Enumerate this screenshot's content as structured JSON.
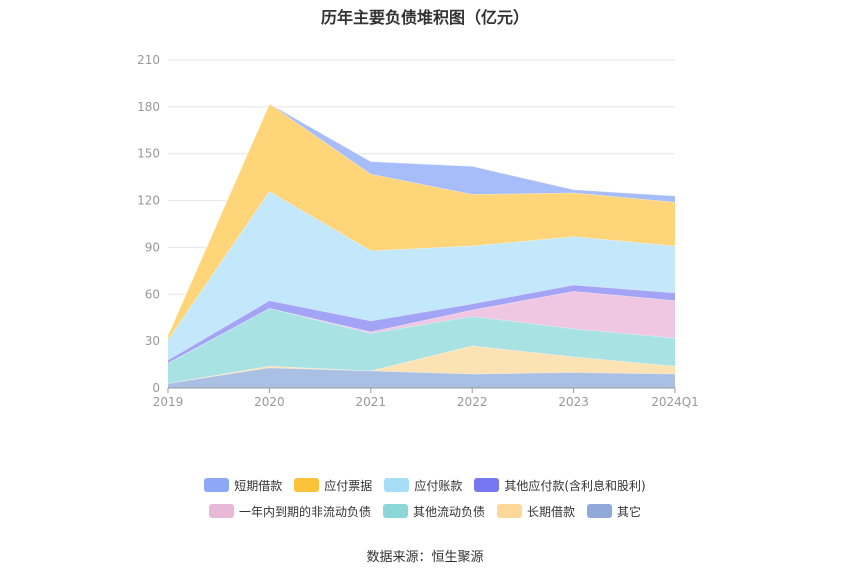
{
  "source": "数据来源：恒生聚源",
  "chart_data": {
    "type": "area",
    "title": "历年主要负债堆积图（亿元）",
    "xlabel": "",
    "ylabel": "",
    "categories": [
      "2019",
      "2020",
      "2021",
      "2022",
      "2023",
      "2024Q1"
    ],
    "ylim": [
      0,
      210
    ],
    "yticks": [
      0,
      30,
      60,
      90,
      120,
      150,
      180,
      210
    ],
    "grid": true,
    "legend_position": "bottom",
    "stacked": true,
    "series": [
      {
        "name": "其它",
        "color": "#a9bfe3",
        "values": [
          3,
          13,
          11,
          9,
          10,
          9
        ]
      },
      {
        "name": "长期借款",
        "color": "#fde2b3",
        "values": [
          0,
          1,
          0,
          18,
          10,
          5
        ]
      },
      {
        "name": "其他流动负债",
        "color": "#a8e2e3",
        "values": [
          13,
          37,
          24,
          19,
          18,
          18
        ]
      },
      {
        "name": "一年内到期的非流动负债",
        "color": "#efc7e2",
        "values": [
          0,
          0,
          1,
          4,
          24,
          24
        ]
      },
      {
        "name": "其他应付款(含利息和股利)",
        "color": "#a3a4f6",
        "values": [
          2,
          5,
          7,
          4,
          4,
          5
        ]
      },
      {
        "name": "应付账款",
        "color": "#c3e8fb",
        "values": [
          13,
          70,
          45,
          37,
          31,
          30
        ]
      },
      {
        "name": "应付票据",
        "color": "#ffd57a",
        "values": [
          3,
          56,
          49,
          33,
          28,
          28
        ]
      },
      {
        "name": "短期借款",
        "color": "#a7bdf9",
        "values": [
          0,
          0,
          8,
          18,
          2,
          4
        ]
      }
    ],
    "legend": [
      {
        "name": "短期借款",
        "color": "#8ca8f6"
      },
      {
        "name": "应付票据",
        "color": "#fcc33a"
      },
      {
        "name": "应付账款",
        "color": "#a6def7"
      },
      {
        "name": "其他应付款(含利息和股利)",
        "color": "#7778f1"
      },
      {
        "name": "一年内到期的非流动负债",
        "color": "#e8b8d8"
      },
      {
        "name": "其他流动负债",
        "color": "#8ad6d8"
      },
      {
        "name": "长期借款",
        "color": "#fed79b"
      },
      {
        "name": "其它",
        "color": "#8faad8"
      }
    ]
  }
}
